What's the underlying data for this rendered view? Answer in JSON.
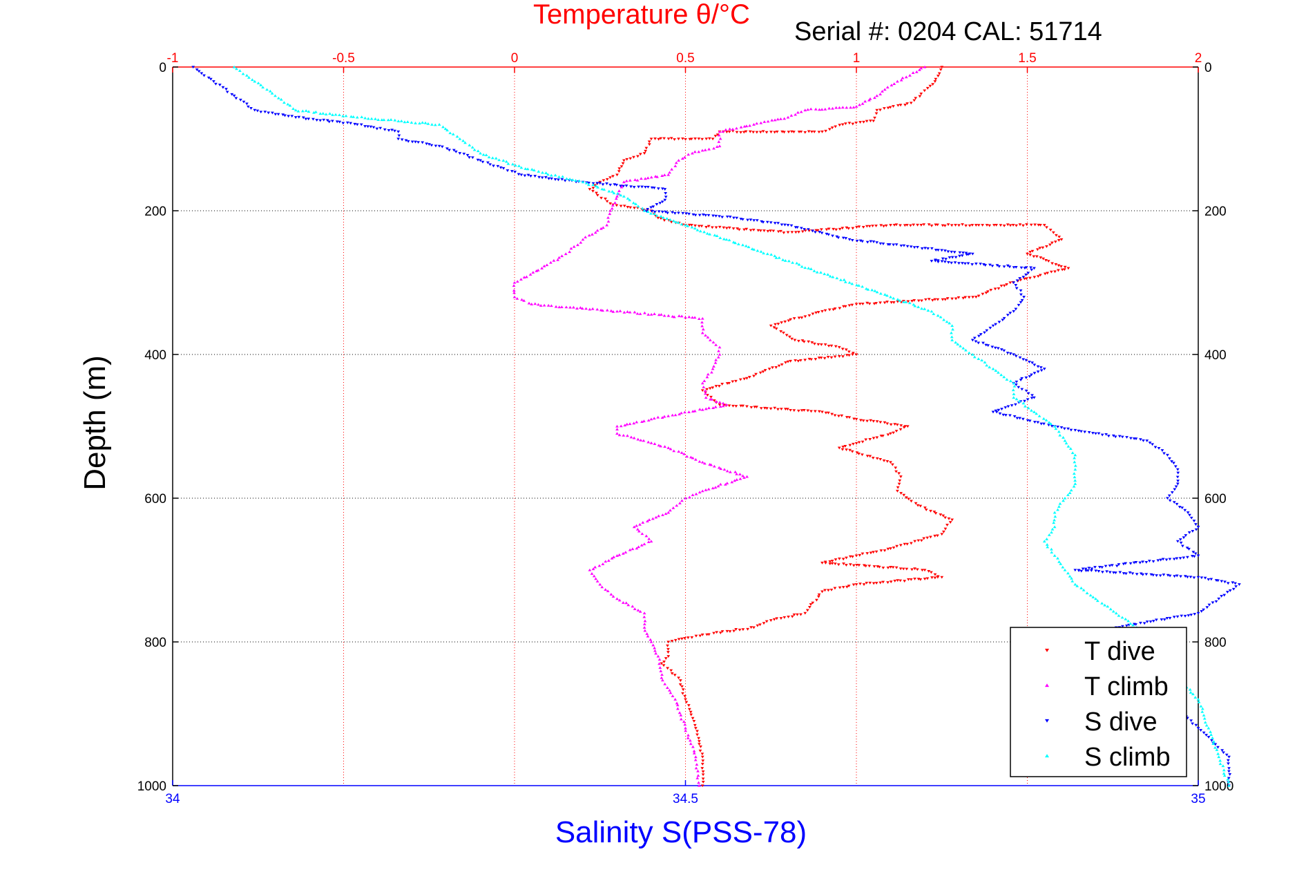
{
  "chart_data": {
    "type": "scatter",
    "title": "Temperature θ/°C",
    "subtitle": "Serial #: 0204  CAL: 51714",
    "xlabel": "Salinity S(PSS-78)",
    "ylabel": "Depth (m)",
    "top_axis": {
      "label": "Temperature θ/°C",
      "range": [
        -1,
        2
      ],
      "ticks": [
        -1,
        -0.5,
        0,
        0.5,
        1,
        1.5,
        2
      ],
      "tick_labels": [
        "-1",
        "-0.5",
        "0",
        "0.5",
        "1",
        "1.5",
        "2"
      ],
      "color": "#ff0000"
    },
    "bottom_axis": {
      "label": "Salinity S(PSS-78)",
      "range": [
        34,
        35
      ],
      "ticks": [
        34,
        34.5,
        35
      ],
      "tick_labels": [
        "34",
        "34.5",
        "35"
      ],
      "color": "#0000ff"
    },
    "y_axis": {
      "label": "Depth (m)",
      "range": [
        0,
        1000
      ],
      "reversed": true,
      "ticks": [
        0,
        200,
        400,
        600,
        800,
        1000
      ],
      "tick_labels": [
        "0",
        "200",
        "400",
        "600",
        "800",
        "1000"
      ]
    },
    "grid": true,
    "legend": {
      "position": "bottom-right"
    },
    "series": [
      {
        "name": "T dive",
        "axis": "top",
        "color": "#ff0000",
        "marker": "triangle-down",
        "points": [
          [
            1.25,
            0
          ],
          [
            1.23,
            20
          ],
          [
            1.16,
            50
          ],
          [
            1.06,
            60
          ],
          [
            1.05,
            75
          ],
          [
            0.96,
            80
          ],
          [
            0.9,
            90
          ],
          [
            0.6,
            90
          ],
          [
            0.58,
            100
          ],
          [
            0.4,
            100
          ],
          [
            0.38,
            120
          ],
          [
            0.32,
            130
          ],
          [
            0.3,
            150
          ],
          [
            0.25,
            160
          ],
          [
            0.22,
            170
          ],
          [
            0.28,
            190
          ],
          [
            0.4,
            200
          ],
          [
            0.42,
            210
          ],
          [
            0.5,
            220
          ],
          [
            0.8,
            230
          ],
          [
            1.1,
            220
          ],
          [
            1.35,
            220
          ],
          [
            1.55,
            220
          ],
          [
            1.6,
            240
          ],
          [
            1.5,
            260
          ],
          [
            1.62,
            280
          ],
          [
            1.45,
            300
          ],
          [
            1.35,
            320
          ],
          [
            1.0,
            330
          ],
          [
            0.9,
            340
          ],
          [
            0.75,
            360
          ],
          [
            0.82,
            380
          ],
          [
            0.95,
            390
          ],
          [
            1.0,
            400
          ],
          [
            0.8,
            410
          ],
          [
            0.7,
            430
          ],
          [
            0.55,
            450
          ],
          [
            0.6,
            470
          ],
          [
            0.9,
            480
          ],
          [
            1.0,
            490
          ],
          [
            1.15,
            500
          ],
          [
            1.1,
            510
          ],
          [
            0.95,
            530
          ],
          [
            1.1,
            550
          ],
          [
            1.13,
            570
          ],
          [
            1.12,
            590
          ],
          [
            1.18,
            610
          ],
          [
            1.28,
            630
          ],
          [
            1.25,
            650
          ],
          [
            1.1,
            670
          ],
          [
            1.0,
            680
          ],
          [
            0.9,
            690
          ],
          [
            1.2,
            700
          ],
          [
            1.25,
            710
          ],
          [
            1.0,
            720
          ],
          [
            0.9,
            730
          ],
          [
            0.85,
            760
          ],
          [
            0.75,
            770
          ],
          [
            0.7,
            780
          ],
          [
            0.55,
            790
          ],
          [
            0.45,
            800
          ],
          [
            0.45,
            820
          ],
          [
            0.43,
            830
          ],
          [
            0.48,
            850
          ],
          [
            0.5,
            880
          ],
          [
            0.53,
            920
          ],
          [
            0.55,
            960
          ],
          [
            0.55,
            1000
          ]
        ]
      },
      {
        "name": "T climb",
        "axis": "top",
        "color": "#ff00ff",
        "marker": "triangle-up",
        "points": [
          [
            1.2,
            0
          ],
          [
            1.12,
            20
          ],
          [
            1.06,
            40
          ],
          [
            1.0,
            55
          ],
          [
            0.85,
            60
          ],
          [
            0.8,
            70
          ],
          [
            0.7,
            80
          ],
          [
            0.6,
            90
          ],
          [
            0.6,
            110
          ],
          [
            0.52,
            120
          ],
          [
            0.48,
            130
          ],
          [
            0.45,
            150
          ],
          [
            0.32,
            160
          ],
          [
            0.3,
            180
          ],
          [
            0.28,
            200
          ],
          [
            0.27,
            220
          ],
          [
            0.2,
            240
          ],
          [
            0.15,
            260
          ],
          [
            0.08,
            280
          ],
          [
            0.0,
            300
          ],
          [
            0.0,
            320
          ],
          [
            0.05,
            330
          ],
          [
            0.3,
            340
          ],
          [
            0.55,
            350
          ],
          [
            0.55,
            370
          ],
          [
            0.6,
            390
          ],
          [
            0.6,
            400
          ],
          [
            0.58,
            420
          ],
          [
            0.55,
            440
          ],
          [
            0.56,
            460
          ],
          [
            0.62,
            470
          ],
          [
            0.4,
            490
          ],
          [
            0.3,
            500
          ],
          [
            0.3,
            510
          ],
          [
            0.45,
            530
          ],
          [
            0.55,
            550
          ],
          [
            0.68,
            570
          ],
          [
            0.55,
            590
          ],
          [
            0.5,
            600
          ],
          [
            0.45,
            620
          ],
          [
            0.35,
            640
          ],
          [
            0.4,
            660
          ],
          [
            0.3,
            680
          ],
          [
            0.22,
            700
          ],
          [
            0.25,
            720
          ],
          [
            0.3,
            740
          ],
          [
            0.38,
            760
          ],
          [
            0.38,
            780
          ],
          [
            0.4,
            800
          ],
          [
            0.42,
            820
          ],
          [
            0.43,
            850
          ],
          [
            0.47,
            880
          ],
          [
            0.5,
            920
          ],
          [
            0.53,
            960
          ],
          [
            0.54,
            1000
          ]
        ]
      },
      {
        "name": "S dive",
        "axis": "bottom",
        "color": "#0000ff",
        "marker": "triangle-down",
        "points": [
          [
            34.02,
            0
          ],
          [
            34.04,
            20
          ],
          [
            34.06,
            40
          ],
          [
            34.08,
            60
          ],
          [
            34.12,
            70
          ],
          [
            34.18,
            80
          ],
          [
            34.22,
            90
          ],
          [
            34.22,
            100
          ],
          [
            34.26,
            110
          ],
          [
            34.28,
            120
          ],
          [
            34.3,
            130
          ],
          [
            34.32,
            140
          ],
          [
            34.34,
            150
          ],
          [
            34.4,
            160
          ],
          [
            34.48,
            170
          ],
          [
            34.48,
            185
          ],
          [
            34.46,
            200
          ],
          [
            34.55,
            210
          ],
          [
            34.6,
            220
          ],
          [
            34.66,
            240
          ],
          [
            34.72,
            250
          ],
          [
            34.78,
            260
          ],
          [
            34.74,
            270
          ],
          [
            34.84,
            280
          ],
          [
            34.82,
            300
          ],
          [
            34.83,
            320
          ],
          [
            34.82,
            340
          ],
          [
            34.8,
            360
          ],
          [
            34.78,
            380
          ],
          [
            34.82,
            400
          ],
          [
            34.85,
            420
          ],
          [
            34.82,
            440
          ],
          [
            34.84,
            460
          ],
          [
            34.8,
            480
          ],
          [
            34.86,
            500
          ],
          [
            34.9,
            510
          ],
          [
            34.95,
            520
          ],
          [
            34.97,
            540
          ],
          [
            34.98,
            560
          ],
          [
            34.98,
            580
          ],
          [
            34.97,
            600
          ],
          [
            34.99,
            620
          ],
          [
            35.0,
            640
          ],
          [
            34.98,
            660
          ],
          [
            35.0,
            680
          ],
          [
            34.88,
            700
          ],
          [
            35.0,
            710
          ],
          [
            35.04,
            720
          ],
          [
            35.02,
            740
          ],
          [
            35.0,
            760
          ],
          [
            34.92,
            780
          ],
          [
            34.9,
            800
          ],
          [
            34.92,
            820
          ],
          [
            34.94,
            850
          ],
          [
            34.97,
            880
          ],
          [
            35.0,
            920
          ],
          [
            35.03,
            960
          ],
          [
            35.03,
            1000
          ]
        ]
      },
      {
        "name": "S climb",
        "axis": "bottom",
        "color": "#00ffff",
        "marker": "triangle-up",
        "points": [
          [
            34.06,
            0
          ],
          [
            34.08,
            20
          ],
          [
            34.1,
            40
          ],
          [
            34.12,
            60
          ],
          [
            34.18,
            70
          ],
          [
            34.26,
            80
          ],
          [
            34.28,
            100
          ],
          [
            34.3,
            120
          ],
          [
            34.34,
            140
          ],
          [
            34.4,
            160
          ],
          [
            34.44,
            180
          ],
          [
            34.46,
            200
          ],
          [
            34.5,
            220
          ],
          [
            34.54,
            240
          ],
          [
            34.58,
            260
          ],
          [
            34.62,
            280
          ],
          [
            34.66,
            300
          ],
          [
            34.7,
            320
          ],
          [
            34.74,
            340
          ],
          [
            34.76,
            360
          ],
          [
            34.76,
            380
          ],
          [
            34.78,
            400
          ],
          [
            34.8,
            420
          ],
          [
            34.82,
            440
          ],
          [
            34.82,
            460
          ],
          [
            34.84,
            480
          ],
          [
            34.86,
            500
          ],
          [
            34.87,
            520
          ],
          [
            34.88,
            540
          ],
          [
            34.88,
            560
          ],
          [
            34.88,
            580
          ],
          [
            34.87,
            600
          ],
          [
            34.86,
            620
          ],
          [
            34.86,
            640
          ],
          [
            34.85,
            660
          ],
          [
            34.86,
            680
          ],
          [
            34.87,
            700
          ],
          [
            34.88,
            720
          ],
          [
            34.9,
            740
          ],
          [
            34.92,
            760
          ],
          [
            34.94,
            780
          ],
          [
            34.96,
            800
          ],
          [
            34.97,
            820
          ],
          [
            34.98,
            850
          ],
          [
            35.0,
            880
          ],
          [
            35.01,
            920
          ],
          [
            35.02,
            960
          ],
          [
            35.03,
            1000
          ]
        ]
      }
    ]
  }
}
